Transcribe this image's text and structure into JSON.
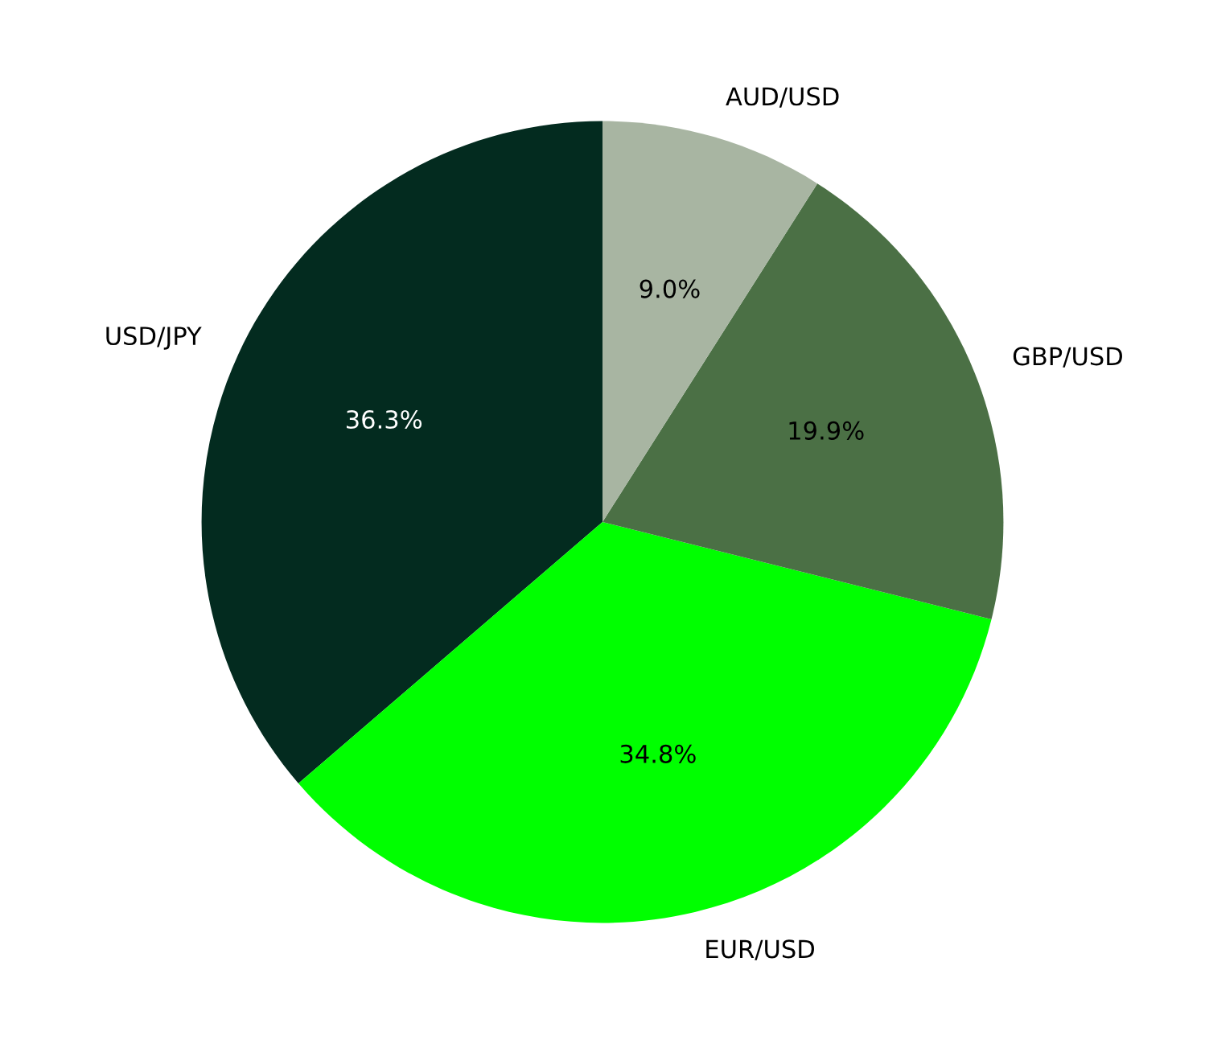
{
  "chart_data": {
    "type": "pie",
    "categories": [
      "USD/JPY",
      "EUR/USD",
      "GBP/USD",
      "AUD/USD"
    ],
    "values": [
      36.3,
      34.8,
      19.9,
      9.0
    ],
    "colors": [
      "#032b1f",
      "#00ff00",
      "#4b7045",
      "#a8b5a2"
    ],
    "value_labels": [
      "36.3%",
      "34.8%",
      "19.9%",
      "9.0%"
    ]
  }
}
